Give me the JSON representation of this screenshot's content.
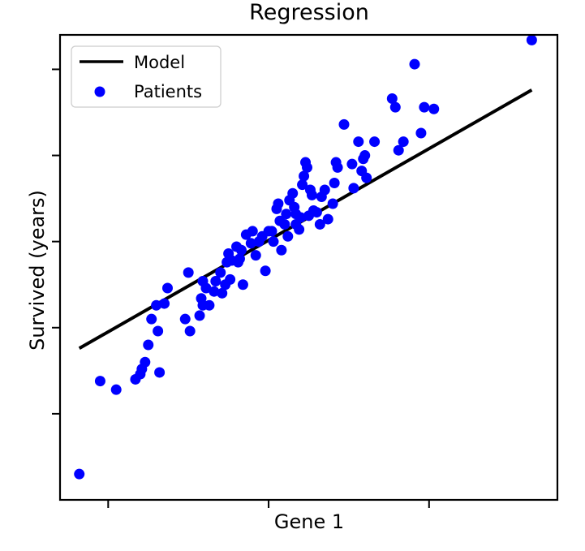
{
  "chart_data": {
    "type": "scatter",
    "title": "Regression",
    "xlabel": "Gene 1",
    "ylabel": "Survived (years)",
    "xlim": [
      -1.3,
      1.8
    ],
    "ylim": [
      -1.5,
      1.2
    ],
    "x_ticks": [
      -1,
      0,
      1
    ],
    "y_ticks": [
      -1,
      -0.5,
      0,
      0.5,
      1
    ],
    "tick_labels_visible": false,
    "grid": false,
    "legend": {
      "position": "top-left",
      "entries": [
        "Model",
        "Patients"
      ]
    },
    "colors": {
      "model": "#000000",
      "patients": "#0000ff"
    },
    "series": [
      {
        "name": "Model",
        "type": "line",
        "x": [
          -1.18,
          1.64
        ],
        "y": [
          -0.62,
          0.88
        ]
      },
      {
        "name": "Patients",
        "type": "scatter",
        "x": [
          -1.18,
          -1.05,
          -0.95,
          -0.83,
          -0.8,
          -0.79,
          -0.77,
          -0.75,
          -0.73,
          -0.7,
          -0.69,
          -0.68,
          -0.65,
          -0.63,
          -0.52,
          -0.5,
          -0.49,
          -0.43,
          -0.41,
          -0.42,
          -0.41,
          -0.39,
          -0.37,
          -0.34,
          -0.33,
          -0.3,
          -0.29,
          -0.27,
          -0.26,
          -0.25,
          -0.24,
          -0.23,
          -0.2,
          -0.19,
          -0.18,
          -0.17,
          -0.16,
          -0.14,
          -0.11,
          -0.1,
          -0.08,
          -0.06,
          -0.04,
          -0.02,
          0.0,
          0.02,
          0.03,
          0.05,
          0.06,
          0.07,
          0.08,
          0.1,
          0.11,
          0.12,
          0.13,
          0.15,
          0.16,
          0.17,
          0.17,
          0.19,
          0.2,
          0.21,
          0.22,
          0.23,
          0.24,
          0.25,
          0.26,
          0.27,
          0.28,
          0.3,
          0.32,
          0.33,
          0.35,
          0.37,
          0.4,
          0.41,
          0.42,
          0.43,
          0.47,
          0.52,
          0.53,
          0.56,
          0.58,
          0.59,
          0.6,
          0.61,
          0.66,
          0.77,
          0.79,
          0.81,
          0.84,
          0.91,
          0.95,
          0.97,
          1.03,
          1.64
        ],
        "y": [
          -1.35,
          -0.81,
          -0.86,
          -0.8,
          -0.77,
          -0.74,
          -0.7,
          -0.6,
          -0.45,
          -0.37,
          -0.52,
          -0.76,
          -0.36,
          -0.27,
          -0.45,
          -0.18,
          -0.52,
          -0.43,
          -0.37,
          -0.33,
          -0.23,
          -0.27,
          -0.37,
          -0.29,
          -0.23,
          -0.18,
          -0.3,
          -0.25,
          -0.12,
          -0.07,
          -0.22,
          -0.11,
          -0.03,
          -0.12,
          -0.1,
          -0.05,
          -0.25,
          0.04,
          -0.01,
          0.06,
          -0.08,
          0.0,
          0.03,
          -0.17,
          0.06,
          0.06,
          0.0,
          0.19,
          0.22,
          0.12,
          -0.05,
          0.1,
          0.16,
          0.03,
          0.24,
          0.28,
          0.2,
          0.1,
          0.16,
          0.07,
          0.14,
          0.33,
          0.38,
          0.46,
          0.43,
          0.15,
          0.3,
          0.27,
          0.18,
          0.17,
          0.1,
          0.26,
          0.3,
          0.13,
          0.22,
          0.34,
          0.46,
          0.43,
          0.68,
          0.45,
          0.31,
          0.58,
          0.41,
          0.48,
          0.5,
          0.37,
          0.58,
          0.83,
          0.78,
          0.53,
          0.58,
          1.03,
          0.63,
          0.78,
          0.77,
          1.17
        ]
      }
    ]
  }
}
